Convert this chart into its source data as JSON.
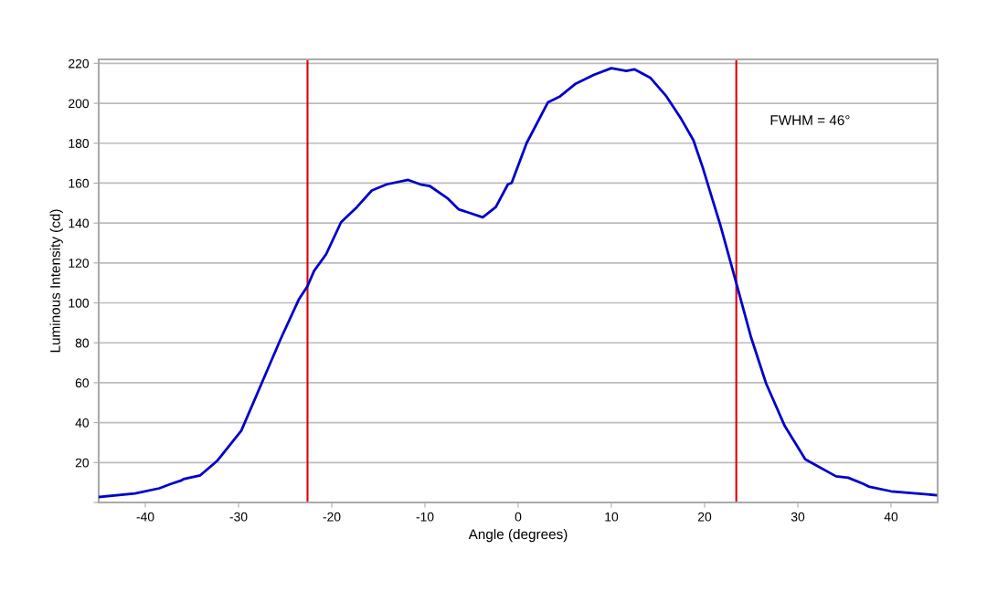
{
  "chart_data": {
    "type": "line",
    "xlabel": "Angle (degrees)",
    "ylabel": "Luminous Intensity (cd)",
    "xlim": [
      -45,
      45
    ],
    "xticks": [
      -40,
      -30,
      -20,
      -10,
      0,
      10,
      20,
      30,
      40
    ],
    "ylim": [
      0,
      222
    ],
    "yticks": [
      {
        "value": 0,
        "label": null
      },
      20,
      40,
      60,
      80,
      100,
      120,
      140,
      160,
      180,
      200,
      220
    ],
    "grid": "y",
    "legend": false,
    "marker": "none",
    "line_style": "solid",
    "series": [
      {
        "color": "#0000cc",
        "x": [
          -44.9,
          -41.1,
          -38.5,
          -37.2,
          -36.2,
          -35.9,
          -34.1,
          -32.3,
          -29.7,
          -27.4,
          -25.5,
          -23.5,
          -22.6,
          -21.9,
          -20.6,
          -19.0,
          -17.3,
          -15.7,
          -14.1,
          -11.8,
          -10.5,
          -9.5,
          -7.6,
          -6.4,
          -5.3,
          -3.8,
          -2.4,
          -1.1,
          -0.7,
          0.9,
          3.2,
          4.5,
          6.1,
          8.1,
          10.0,
          11.6,
          12.5,
          14.2,
          15.9,
          17.5,
          18.8,
          19.8,
          20.8,
          21.7,
          23.4,
          25.0,
          26.6,
          28.6,
          30.8,
          34.1,
          35.4,
          37.0,
          37.6,
          40.0,
          44.8
        ],
        "values": [
          2.8,
          4.5,
          7.1,
          9.4,
          10.9,
          11.7,
          13.6,
          20.8,
          36,
          61,
          81.7,
          102,
          108.4,
          116,
          124.4,
          140.4,
          148,
          156.3,
          159.4,
          161.6,
          159.4,
          158.6,
          152.5,
          146.9,
          145.2,
          142.9,
          148,
          159.4,
          160.1,
          180,
          200.5,
          203.5,
          209.6,
          214.2,
          217.6,
          216.2,
          217,
          212.7,
          203.5,
          192.1,
          181.5,
          167.8,
          152.5,
          138.8,
          109.9,
          82.5,
          59.6,
          38.3,
          21.6,
          13.1,
          12.4,
          9.4,
          8,
          5.6,
          3.7
        ]
      }
    ],
    "ref_lines": [
      {
        "axis": "x",
        "value": -22.6,
        "color": "#dd0000"
      },
      {
        "axis": "x",
        "value": 23.4,
        "color": "#dd0000"
      }
    ],
    "annotations": [
      "FWHM = 46°"
    ]
  }
}
